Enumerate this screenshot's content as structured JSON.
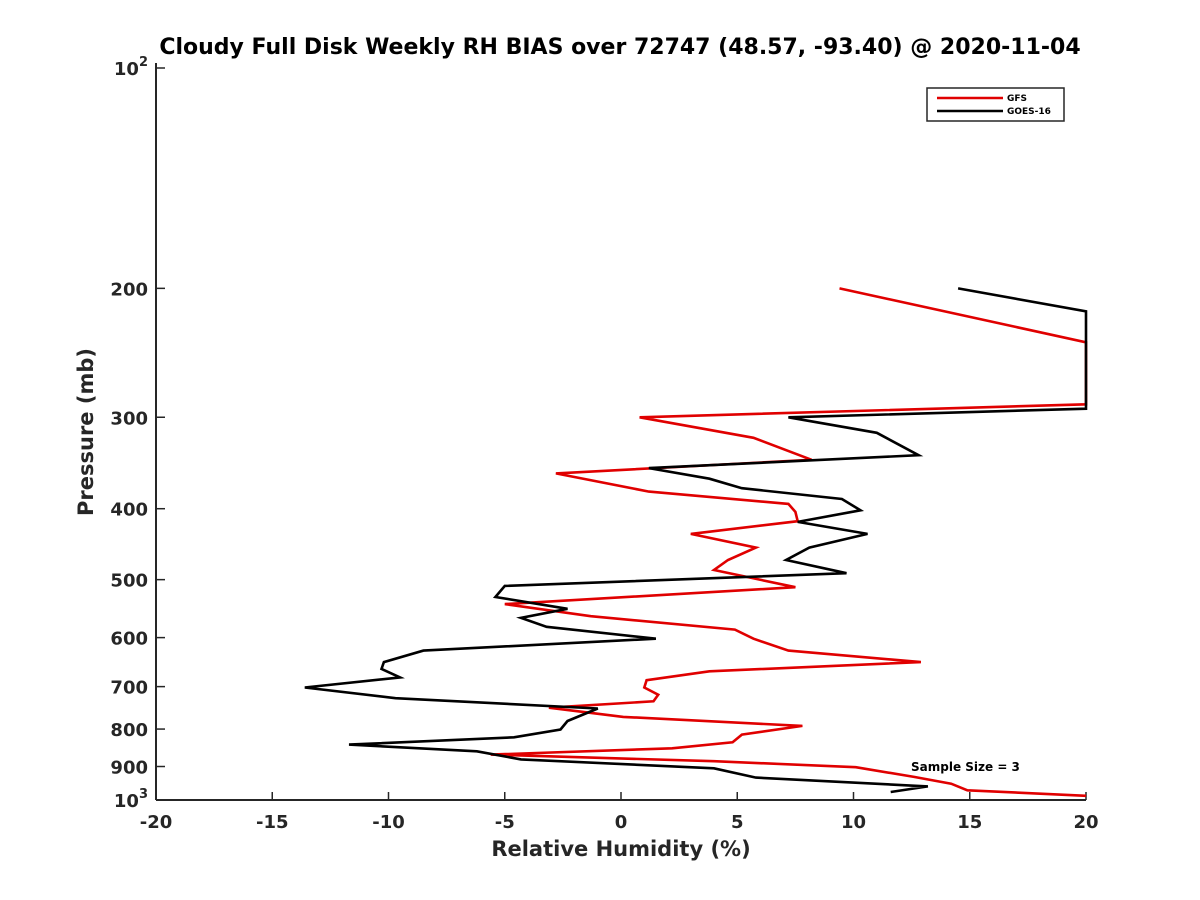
{
  "chart_data": {
    "type": "line",
    "title": "Cloudy Full Disk Weekly RH BIAS over 72747 (48.57, -93.40) @ 2020-11-04",
    "xlabel": "Relative Humidity (%)",
    "ylabel": "Pressure (mb)",
    "xlim": [
      -20,
      20
    ],
    "ylim": [
      100,
      1000
    ],
    "yscale": "log",
    "y_reversed": true,
    "xticks": [
      -20,
      -15,
      -10,
      -5,
      0,
      5,
      10,
      15,
      20
    ],
    "yticks": [
      {
        "value": 100,
        "base": "10",
        "exp": "2"
      },
      {
        "value": 200,
        "label": "200"
      },
      {
        "value": 300,
        "label": "300"
      },
      {
        "value": 400,
        "label": "400"
      },
      {
        "value": 500,
        "label": "500"
      },
      {
        "value": 600,
        "label": "600"
      },
      {
        "value": 700,
        "label": "700"
      },
      {
        "value": 800,
        "label": "800"
      },
      {
        "value": 900,
        "label": "900"
      },
      {
        "value": 1000,
        "base": "10",
        "exp": "3"
      }
    ],
    "legend_position": "top-right",
    "annotation": "Sample Size = 3",
    "series": [
      {
        "name": "GFS",
        "color": "#e00000",
        "points": [
          [
            9.4,
            200
          ],
          [
            20,
            237
          ],
          [
            20,
            288
          ],
          [
            0.8,
            300
          ],
          [
            5.7,
            320
          ],
          [
            8.2,
            343
          ],
          [
            -2.8,
            358
          ],
          [
            1.2,
            379
          ],
          [
            7.2,
            394
          ],
          [
            7.5,
            404
          ],
          [
            7.6,
            416
          ],
          [
            3.0,
            433
          ],
          [
            5.8,
            452
          ],
          [
            4.6,
            470
          ],
          [
            4.0,
            485
          ],
          [
            7.5,
            512
          ],
          [
            -5.0,
            540
          ],
          [
            -1.3,
            561
          ],
          [
            4.9,
            585
          ],
          [
            5.7,
            602
          ],
          [
            7.2,
            625
          ],
          [
            12.9,
            648
          ],
          [
            3.8,
            667
          ],
          [
            1.1,
            686
          ],
          [
            1.0,
            702
          ],
          [
            1.6,
            718
          ],
          [
            1.4,
            733
          ],
          [
            -3.1,
            748
          ],
          [
            0.1,
            770
          ],
          [
            7.8,
            792
          ],
          [
            5.2,
            814
          ],
          [
            4.8,
            834
          ],
          [
            2.2,
            850
          ],
          [
            -5.6,
            867
          ],
          [
            4.0,
            885
          ],
          [
            10.1,
            902
          ],
          [
            12.6,
            930
          ],
          [
            14.2,
            950
          ],
          [
            14.9,
            970
          ],
          [
            20,
            987
          ]
        ]
      },
      {
        "name": "GOES-16",
        "color": "#000000",
        "points": [
          [
            14.5,
            200
          ],
          [
            20,
            215
          ],
          [
            20,
            292
          ],
          [
            7.2,
            300
          ],
          [
            11.0,
            315
          ],
          [
            12.8,
            338
          ],
          [
            1.2,
            352
          ],
          [
            3.8,
            364
          ],
          [
            5.2,
            375
          ],
          [
            9.5,
            388
          ],
          [
            10.3,
            402
          ],
          [
            7.6,
            417
          ],
          [
            10.6,
            433
          ],
          [
            8.1,
            452
          ],
          [
            7.1,
            470
          ],
          [
            9.7,
            490
          ],
          [
            -5.0,
            510
          ],
          [
            -5.4,
            528
          ],
          [
            -2.3,
            548
          ],
          [
            -4.3,
            564
          ],
          [
            -3.2,
            580
          ],
          [
            1.5,
            602
          ],
          [
            -8.5,
            625
          ],
          [
            -10.2,
            648
          ],
          [
            -10.3,
            662
          ],
          [
            -9.5,
            680
          ],
          [
            -13.6,
            702
          ],
          [
            -9.7,
            726
          ],
          [
            -1.0,
            750
          ],
          [
            -2.3,
            780
          ],
          [
            -2.6,
            801
          ],
          [
            -4.6,
            821
          ],
          [
            -11.7,
            840
          ],
          [
            -6.2,
            858
          ],
          [
            -4.3,
            880
          ],
          [
            4.0,
            905
          ],
          [
            5.8,
            932
          ],
          [
            13.2,
            958
          ],
          [
            11.6,
            975
          ]
        ]
      }
    ]
  }
}
